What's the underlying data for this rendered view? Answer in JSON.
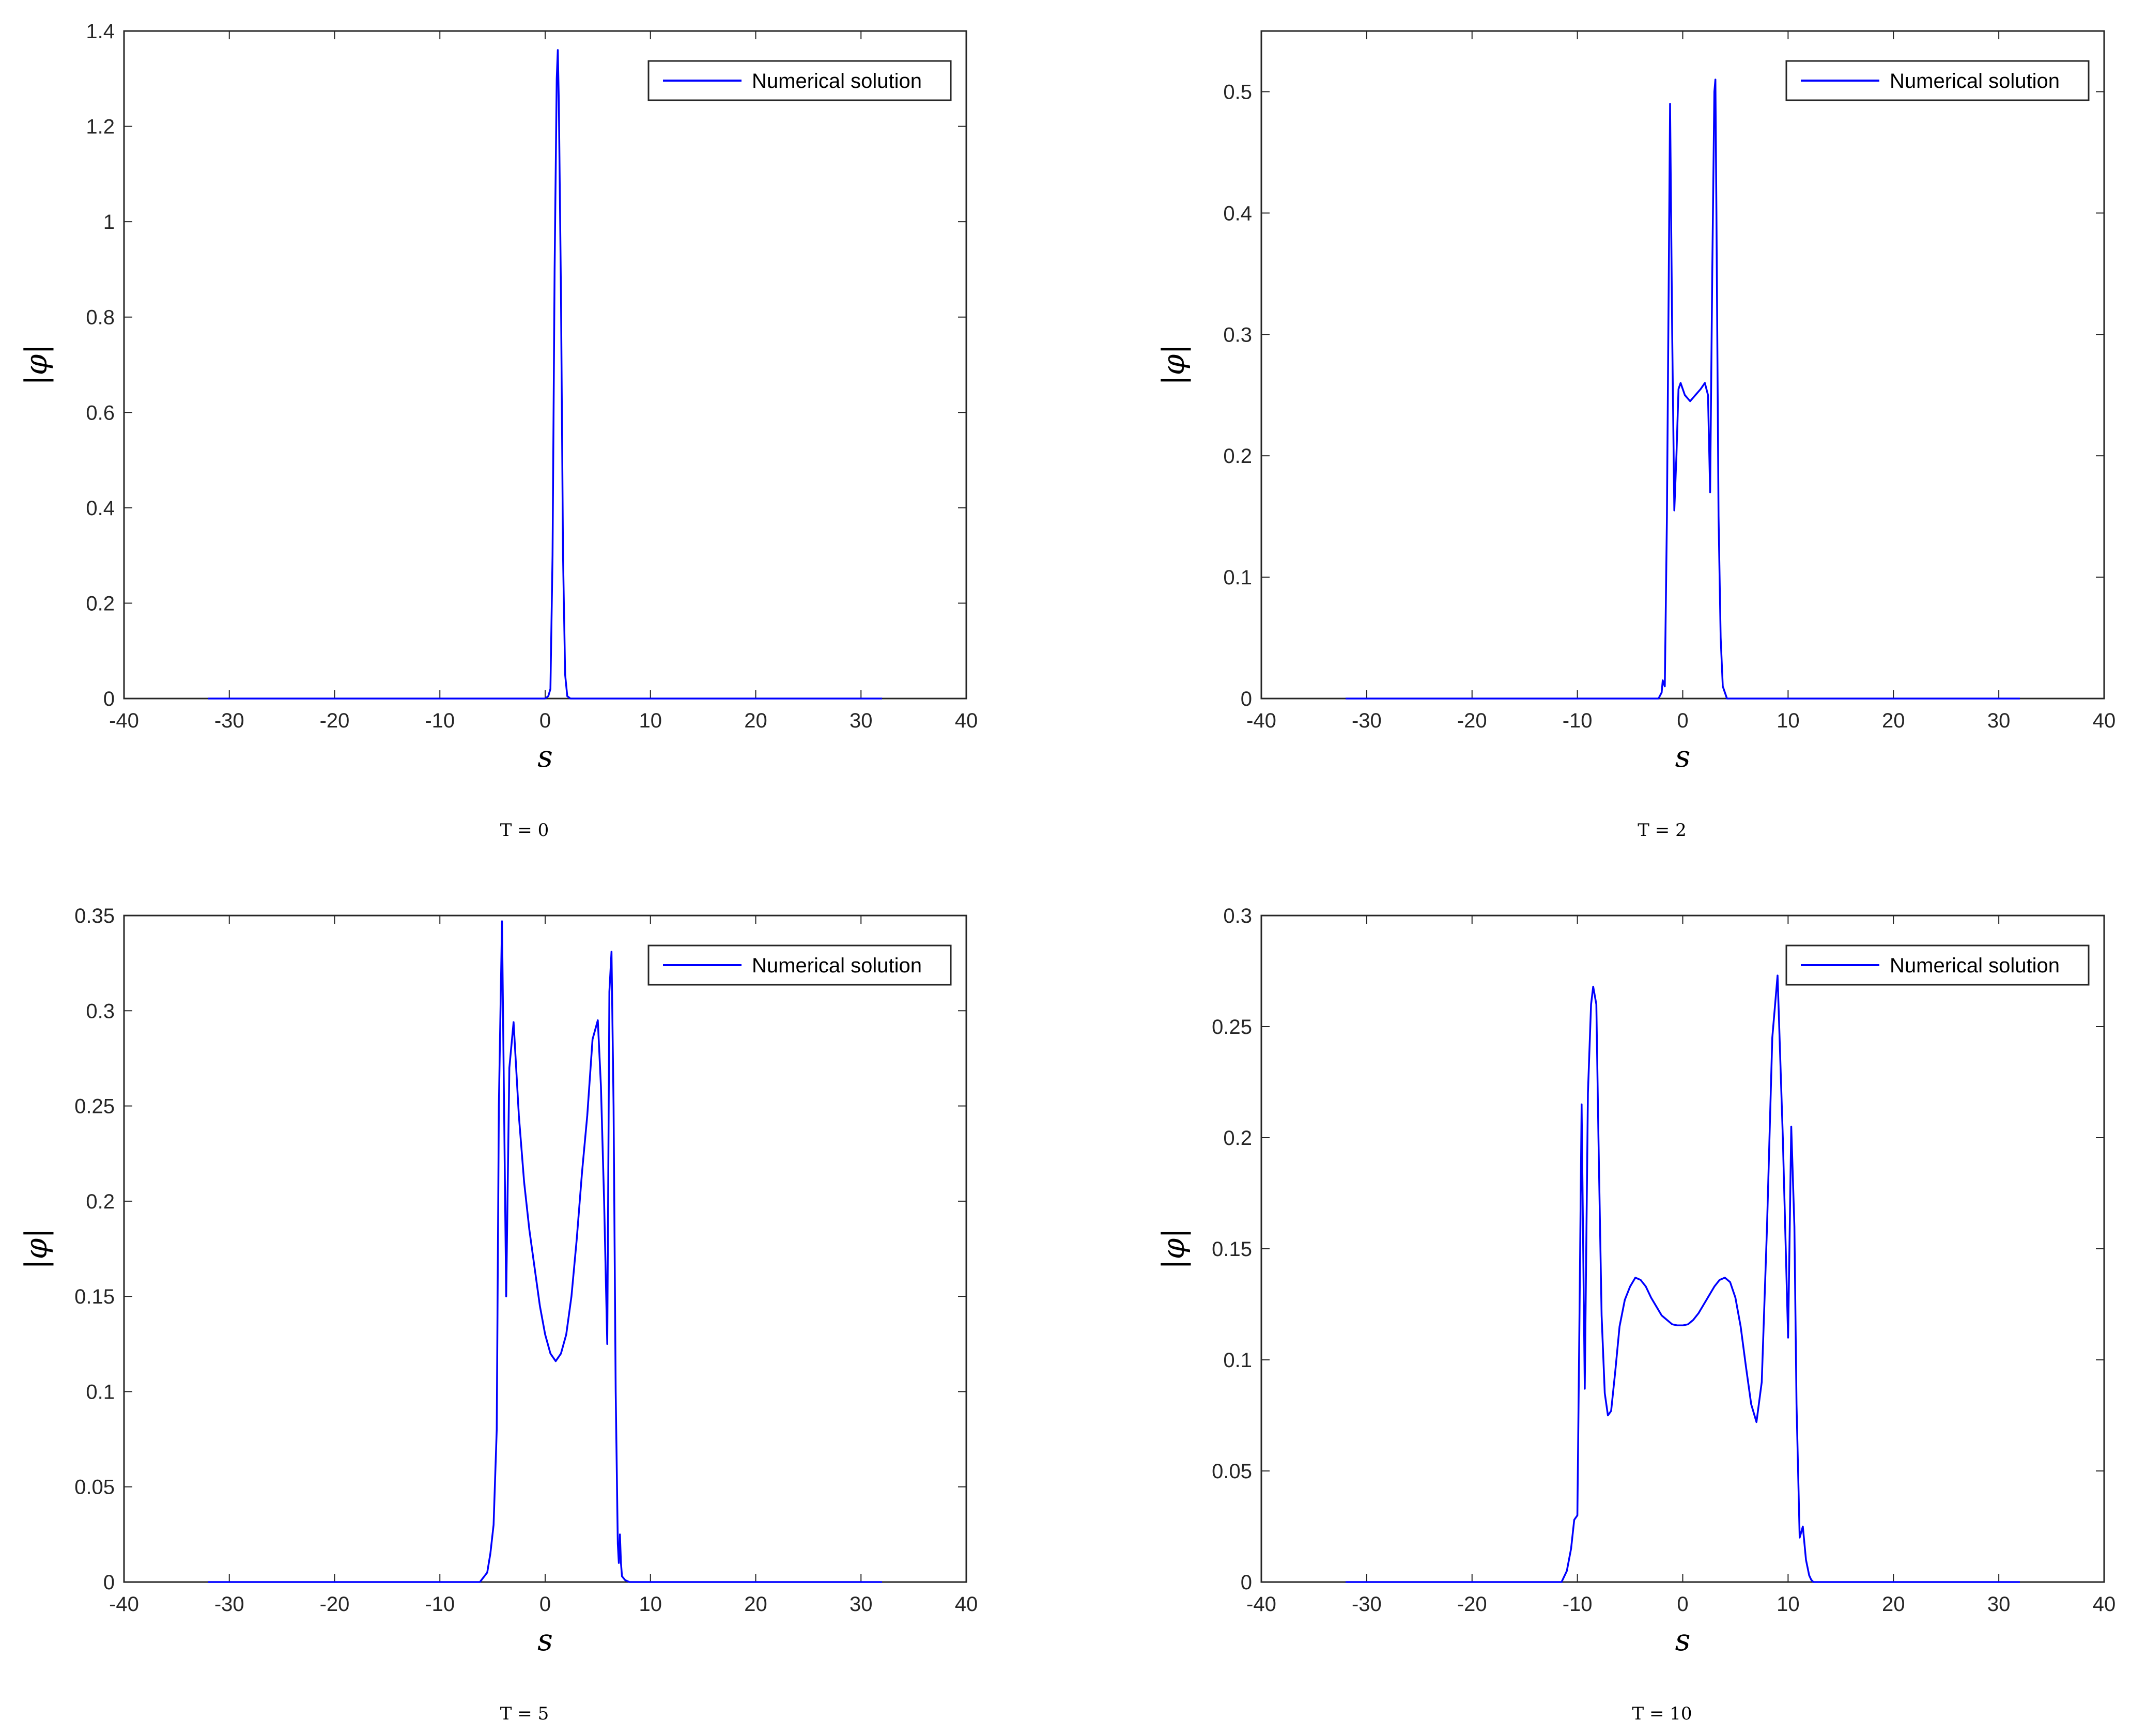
{
  "chart_data": [
    {
      "type": "line",
      "caption": "T = 0",
      "xlabel": "s",
      "ylabel": "|φ|",
      "xlim": [
        -40,
        40
      ],
      "ylim": [
        0,
        1.4
      ],
      "xticks": [
        "-40",
        "-30",
        "-20",
        "-10",
        "0",
        "10",
        "20",
        "30",
        "40"
      ],
      "yticks": [
        "0",
        "0.2",
        "0.4",
        "0.6",
        "0.8",
        "1",
        "1.2",
        "1.4"
      ],
      "legend": "top-right",
      "grid": false,
      "series": [
        {
          "name": "Numerical solution",
          "color": "#0000ff",
          "x": [
            -32,
            0.0,
            0.3,
            0.5,
            0.7,
            0.9,
            1.1,
            1.2,
            1.3,
            1.5,
            1.7,
            1.9,
            2.1,
            2.4,
            32
          ],
          "y": [
            0,
            0,
            0.005,
            0.02,
            0.3,
            0.9,
            1.3,
            1.36,
            1.25,
            0.85,
            0.3,
            0.05,
            0.005,
            0,
            0
          ]
        }
      ]
    },
    {
      "type": "line",
      "caption": "T = 2",
      "xlabel": "s",
      "ylabel": "|φ|",
      "xlim": [
        -40,
        40
      ],
      "ylim": [
        0,
        0.55
      ],
      "xticks": [
        "-40",
        "-30",
        "-20",
        "-10",
        "0",
        "10",
        "20",
        "30",
        "40"
      ],
      "yticks": [
        "0",
        "0.1",
        "0.2",
        "0.3",
        "0.4",
        "0.5"
      ],
      "legend": "top-right",
      "grid": false,
      "series": [
        {
          "name": "Numerical solution",
          "color": "#0000ff",
          "x": [
            -32,
            -2.3,
            -2.0,
            -1.9,
            -1.7,
            -1.5,
            -1.2,
            -1.0,
            -0.8,
            -0.6,
            -0.4,
            -0.2,
            0.2,
            0.7,
            1.2,
            1.7,
            2.1,
            2.4,
            2.6,
            2.8,
            3.0,
            3.1,
            3.2,
            3.4,
            3.6,
            3.8,
            4.2,
            32
          ],
          "y": [
            0,
            0,
            0.005,
            0.015,
            0.01,
            0.15,
            0.49,
            0.3,
            0.155,
            0.2,
            0.255,
            0.26,
            0.25,
            0.245,
            0.25,
            0.255,
            0.26,
            0.25,
            0.17,
            0.35,
            0.5,
            0.51,
            0.4,
            0.15,
            0.05,
            0.01,
            0,
            0
          ]
        }
      ]
    },
    {
      "type": "line",
      "caption": "T = 5",
      "xlabel": "s",
      "ylabel": "|φ|",
      "xlim": [
        -40,
        40
      ],
      "ylim": [
        0,
        0.35
      ],
      "xticks": [
        "-40",
        "-30",
        "-20",
        "-10",
        "0",
        "10",
        "20",
        "30",
        "40"
      ],
      "yticks": [
        "0",
        "0.05",
        "0.1",
        "0.15",
        "0.2",
        "0.25",
        "0.3",
        "0.35"
      ],
      "legend": "top-right",
      "grid": false,
      "series": [
        {
          "name": "Numerical solution",
          "color": "#0000ff",
          "x": [
            -32,
            -6.2,
            -5.5,
            -5.2,
            -4.9,
            -4.6,
            -4.4,
            -4.1,
            -3.7,
            -3.4,
            -3.0,
            -2.5,
            -2.0,
            -1.5,
            -1.0,
            -0.5,
            0.0,
            0.5,
            1.0,
            1.5,
            2.0,
            2.5,
            3.0,
            3.5,
            4.0,
            4.5,
            5.0,
            5.3,
            5.6,
            5.9,
            6.1,
            6.3,
            6.5,
            6.7,
            6.9,
            7.0,
            7.1,
            7.2,
            7.3,
            7.6,
            8.0,
            32
          ],
          "y": [
            0,
            0,
            0.005,
            0.015,
            0.03,
            0.08,
            0.25,
            0.347,
            0.15,
            0.27,
            0.294,
            0.245,
            0.21,
            0.185,
            0.165,
            0.145,
            0.13,
            0.12,
            0.116,
            0.12,
            0.13,
            0.15,
            0.18,
            0.215,
            0.245,
            0.285,
            0.295,
            0.26,
            0.2,
            0.125,
            0.31,
            0.331,
            0.25,
            0.1,
            0.02,
            0.01,
            0.025,
            0.01,
            0.003,
            0.001,
            0,
            0
          ]
        }
      ]
    },
    {
      "type": "line",
      "caption": "T = 10",
      "xlabel": "s",
      "ylabel": "|φ|",
      "xlim": [
        -40,
        40
      ],
      "ylim": [
        0,
        0.3
      ],
      "xticks": [
        "-40",
        "-30",
        "-20",
        "-10",
        "0",
        "10",
        "20",
        "30",
        "40"
      ],
      "yticks": [
        "0",
        "0.05",
        "0.1",
        "0.15",
        "0.2",
        "0.25",
        "0.3"
      ],
      "legend": "top-right",
      "grid": false,
      "series": [
        {
          "name": "Numerical solution",
          "color": "#0000ff",
          "x": [
            -32,
            -11.5,
            -11.0,
            -10.6,
            -10.3,
            -10.0,
            -9.8,
            -9.6,
            -9.3,
            -9.0,
            -8.7,
            -8.5,
            -8.2,
            -8.0,
            -7.7,
            -7.4,
            -7.1,
            -6.8,
            -6.4,
            -6.0,
            -5.5,
            -5.0,
            -4.5,
            -4.0,
            -3.5,
            -3.0,
            -2.5,
            -2.0,
            -1.5,
            -1.0,
            -0.5,
            0.0,
            0.5,
            1.0,
            1.5,
            2.0,
            2.5,
            3.0,
            3.5,
            4.0,
            4.5,
            5.0,
            5.5,
            6.0,
            6.5,
            7.0,
            7.5,
            8.0,
            8.5,
            9.0,
            9.5,
            10.0,
            10.3,
            10.6,
            10.8,
            11.1,
            11.4,
            11.7,
            12.0,
            12.2,
            12.4,
            12.7,
            13.0,
            13.5,
            32
          ],
          "y": [
            0,
            0,
            0.005,
            0.015,
            0.028,
            0.03,
            0.12,
            0.215,
            0.087,
            0.22,
            0.26,
            0.268,
            0.26,
            0.2,
            0.12,
            0.085,
            0.075,
            0.077,
            0.095,
            0.115,
            0.127,
            0.133,
            0.137,
            0.136,
            0.133,
            0.128,
            0.124,
            0.12,
            0.118,
            0.116,
            0.1155,
            0.1155,
            0.116,
            0.118,
            0.121,
            0.125,
            0.129,
            0.133,
            0.136,
            0.137,
            0.135,
            0.128,
            0.115,
            0.097,
            0.08,
            0.072,
            0.09,
            0.16,
            0.245,
            0.273,
            0.2,
            0.11,
            0.205,
            0.16,
            0.08,
            0.02,
            0.025,
            0.01,
            0.003,
            0.001,
            0,
            0,
            0,
            0,
            0
          ]
        }
      ]
    }
  ]
}
